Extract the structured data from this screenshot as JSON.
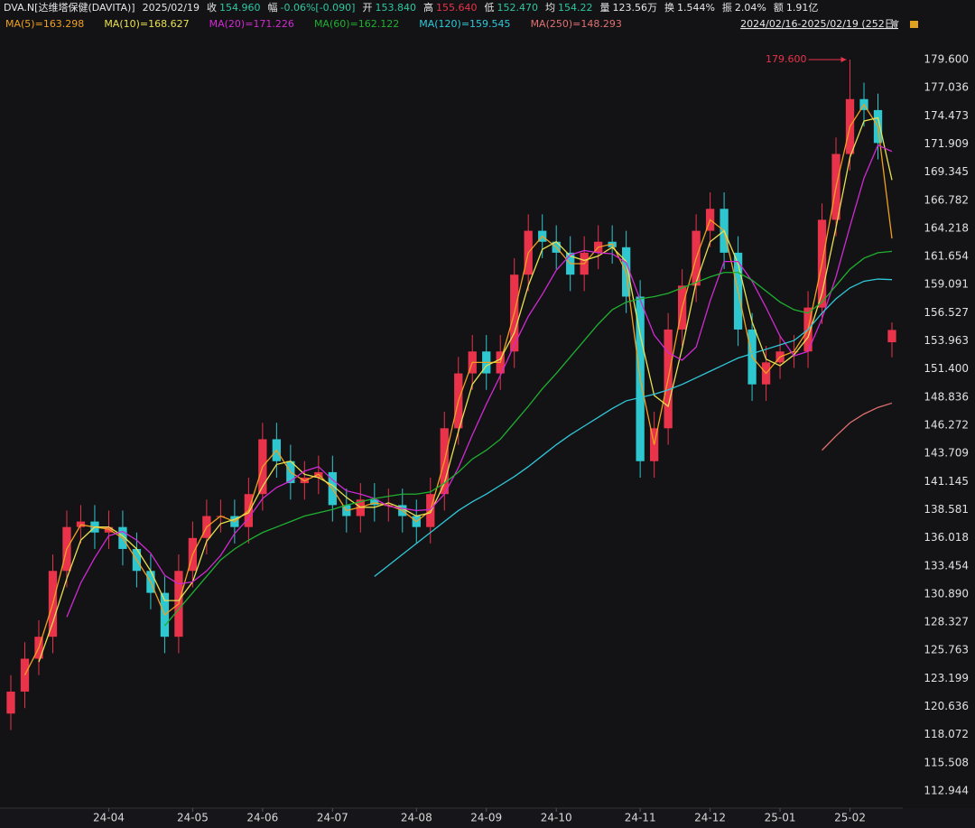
{
  "header": [
    {
      "label": "DVA.N[达维塔保健(DAVITA)]",
      "color": "#e6e6e6"
    },
    {
      "label": "2025/02/19",
      "color": "#e6e6e6"
    },
    {
      "label": "收",
      "color": "#e6e6e6"
    },
    {
      "label": "154.960",
      "color": "#2ec6a0"
    },
    {
      "label": "幅",
      "color": "#e6e6e6"
    },
    {
      "label": "-0.06%[-0.090]",
      "color": "#2ec6a0"
    },
    {
      "label": "开",
      "color": "#e6e6e6"
    },
    {
      "label": "153.840",
      "color": "#2ec6a0"
    },
    {
      "label": "高",
      "color": "#e6e6e6"
    },
    {
      "label": "155.640",
      "color": "#e8334a"
    },
    {
      "label": "低",
      "color": "#e6e6e6"
    },
    {
      "label": "152.470",
      "color": "#2ec6a0"
    },
    {
      "label": "均",
      "color": "#e6e6e6"
    },
    {
      "label": "154.22",
      "color": "#2ec6a0"
    },
    {
      "label": "量",
      "color": "#e6e6e6"
    },
    {
      "label": "123.56万",
      "color": "#e6e6e6"
    },
    {
      "label": "换",
      "color": "#e6e6e6"
    },
    {
      "label": "1.544%",
      "color": "#e6e6e6"
    },
    {
      "label": "振",
      "color": "#e6e6e6"
    },
    {
      "label": "2.04%",
      "color": "#e6e6e6"
    },
    {
      "label": "额",
      "color": "#e6e6e6"
    },
    {
      "label": "1.91亿",
      "color": "#e6e6e6"
    }
  ],
  "chart_data": {
    "type": "candlestick",
    "range_label": "2024/02/16-2025/02/19 (252日)",
    "annotation": {
      "text": "179.600",
      "index": 60,
      "value": 179.6
    },
    "up_color": "#e8334a",
    "down_color": "#2ec6cf",
    "categories": [
      null,
      null,
      null,
      null,
      null,
      null,
      null,
      "24-04",
      null,
      null,
      null,
      null,
      null,
      "24-05",
      null,
      null,
      null,
      null,
      "24-06",
      null,
      null,
      null,
      null,
      "24-07",
      null,
      null,
      null,
      null,
      null,
      "24-08",
      null,
      null,
      null,
      null,
      "24-09",
      null,
      null,
      null,
      null,
      "24-10",
      null,
      null,
      null,
      null,
      null,
      "24-11",
      null,
      null,
      null,
      null,
      "24-12",
      null,
      null,
      null,
      null,
      "25-01",
      null,
      null,
      null,
      null,
      "25-02",
      null,
      null,
      null
    ],
    "open": [
      120,
      122,
      125,
      127,
      133,
      137,
      137.5,
      136.5,
      137,
      135,
      133,
      131,
      127,
      133,
      136,
      138,
      138,
      137,
      140,
      145,
      143,
      141,
      141.5,
      142,
      139,
      138,
      139.5,
      139,
      139,
      138,
      137,
      140,
      146,
      151,
      153,
      151,
      153,
      160,
      164,
      163,
      162,
      160,
      162,
      163,
      162.5,
      158,
      143,
      146,
      155,
      159,
      164,
      166,
      162,
      155,
      150,
      152,
      153,
      153,
      157,
      165,
      171,
      176,
      175,
      153.84
    ],
    "high": [
      123.5,
      126.5,
      128.5,
      134.5,
      138.5,
      139,
      139,
      138.5,
      138.5,
      136.5,
      134.5,
      132.5,
      134.5,
      137.5,
      139.5,
      139.5,
      139.5,
      141.5,
      146.5,
      146.5,
      144.5,
      143,
      143.5,
      143.5,
      140.5,
      141,
      141,
      140.5,
      140.5,
      139.5,
      141.5,
      147.5,
      152.5,
      154.5,
      154.5,
      154.5,
      161.5,
      165.5,
      165.5,
      164.5,
      163.5,
      163.5,
      164.5,
      164.5,
      164,
      159.5,
      147.5,
      156.5,
      160.5,
      165.5,
      167.5,
      167.5,
      163.5,
      156.5,
      153.5,
      154.5,
      154.5,
      158.5,
      166.5,
      172.5,
      179.6,
      177.5,
      176.5,
      155.64
    ],
    "low": [
      118.5,
      120.5,
      123.5,
      125.5,
      131.5,
      135.5,
      135,
      135,
      133.5,
      131.5,
      129.5,
      125.5,
      125.5,
      131.5,
      134.5,
      136.5,
      135.5,
      135.5,
      138.5,
      141.5,
      139.5,
      139.5,
      140,
      137.5,
      136.5,
      136.5,
      137.5,
      137.5,
      136.5,
      135.5,
      135.5,
      138.5,
      144.5,
      149.5,
      149.5,
      149.5,
      151.5,
      158.5,
      161.5,
      160.5,
      158.5,
      158.5,
      160.5,
      161,
      156.5,
      141.5,
      141.5,
      144.5,
      153.5,
      157.5,
      162.5,
      160.5,
      153.5,
      148.5,
      148.5,
      150.5,
      151.5,
      151.5,
      155.5,
      163.5,
      169.5,
      173.5,
      170.5,
      152.47
    ],
    "close": [
      122,
      125,
      127,
      133,
      137,
      137.5,
      136.5,
      137,
      135,
      133,
      131,
      127,
      133,
      136,
      138,
      138,
      137,
      140,
      145,
      143,
      141,
      141.5,
      142,
      139,
      138,
      139.5,
      139,
      139,
      138,
      137,
      140,
      146,
      151,
      153,
      151,
      153,
      160,
      164,
      163,
      162,
      160,
      162,
      163,
      162.5,
      158,
      143,
      146,
      155,
      159,
      164,
      166,
      162,
      155,
      150,
      152,
      153,
      153,
      157,
      165,
      171,
      176,
      175,
      172,
      154.96
    ],
    "series": [
      {
        "name": "MA(5)=163.298",
        "color": "#f0a020",
        "values": [
          null,
          123.5,
          126,
          130,
          135,
          137.2,
          137,
          136.8,
          136,
          134,
          132,
          129,
          130,
          134.5,
          137,
          138,
          137.5,
          138.5,
          142.5,
          144,
          142,
          141.2,
          141.8,
          140.5,
          138.5,
          138.8,
          139.2,
          139,
          138.5,
          137.5,
          138.5,
          143,
          148.5,
          152,
          152,
          152,
          156.5,
          162,
          163.5,
          162.5,
          161,
          161,
          162.5,
          162.8,
          160.2,
          150.5,
          144.5,
          150.5,
          157,
          161.5,
          165,
          164,
          158.5,
          152.5,
          151,
          152.5,
          153,
          155,
          161,
          168,
          173.5,
          175.5,
          173.5,
          163.298
        ]
      },
      {
        "name": "MA(10)=168.627",
        "color": "#e8e050",
        "values": [
          null,
          null,
          124.7,
          128.3,
          132.3,
          135.8,
          137,
          137,
          136.2,
          135,
          133,
          130.3,
          130.3,
          132,
          135.7,
          137.3,
          137.7,
          138.3,
          140.7,
          142.7,
          143,
          141.8,
          141.5,
          140.8,
          139.7,
          138.8,
          138.8,
          139.2,
          138.7,
          138,
          138.3,
          141,
          145.7,
          150,
          151.7,
          152.3,
          154.7,
          159,
          162.3,
          163,
          161.7,
          161.3,
          161.7,
          162.5,
          161.2,
          154.5,
          149,
          148,
          153.3,
          159.3,
          163,
          164,
          161,
          155.7,
          152.3,
          151.7,
          152.7,
          154.3,
          158.3,
          164.3,
          170.7,
          174,
          174.3,
          168.627
        ]
      },
      {
        "name": "MA(20)=171.226",
        "color": "#d02ad0",
        "values": [
          null,
          null,
          null,
          null,
          128.8,
          131.9,
          134.2,
          136.2,
          136.6,
          135.8,
          134.6,
          132.6,
          131.8,
          132,
          133,
          134.4,
          136.4,
          137.8,
          139.6,
          140.6,
          141.2,
          142.1,
          142.5,
          141.3,
          140.3,
          140,
          139.6,
          138.9,
          138.7,
          138.5,
          138.6,
          140,
          142.4,
          145.4,
          148.2,
          150.8,
          153.6,
          156.2,
          158.2,
          160.4,
          161.8,
          162.2,
          162,
          161.9,
          161.1,
          157.7,
          154.5,
          152.9,
          152.2,
          153.4,
          157.6,
          161.2,
          161.2,
          159.4,
          157,
          154.4,
          152.6,
          153,
          156,
          159.8,
          164.4,
          168.8,
          171.8,
          171.226
        ]
      },
      {
        "name": "MA(60)=162.122",
        "color": "#20b030",
        "values": [
          null,
          null,
          null,
          null,
          null,
          null,
          null,
          null,
          null,
          null,
          null,
          128,
          129.5,
          131,
          132.5,
          134,
          135,
          135.8,
          136.5,
          137,
          137.5,
          138,
          138.3,
          138.6,
          139,
          139.3,
          139.6,
          139.8,
          140,
          140,
          140.2,
          141,
          142,
          143.2,
          144,
          145,
          146.5,
          148,
          149.6,
          151,
          152.5,
          154,
          155.5,
          156.8,
          157.5,
          157.8,
          158,
          158.3,
          158.8,
          159.3,
          159.8,
          160.2,
          160.2,
          159.5,
          158.5,
          157.5,
          156.8,
          156.5,
          157.5,
          159,
          160.5,
          161.5,
          162,
          162.122
        ]
      },
      {
        "name": "MA(120)=159.545",
        "color": "#30c8d8",
        "values": [
          null,
          null,
          null,
          null,
          null,
          null,
          null,
          null,
          null,
          null,
          null,
          null,
          null,
          null,
          null,
          null,
          null,
          null,
          null,
          null,
          null,
          null,
          null,
          null,
          null,
          null,
          132.5,
          133.5,
          134.5,
          135.5,
          136.5,
          137.5,
          138.5,
          139.3,
          140,
          140.8,
          141.6,
          142.5,
          143.5,
          144.5,
          145.4,
          146.2,
          147,
          147.8,
          148.5,
          148.8,
          149.1,
          149.5,
          150,
          150.6,
          151.2,
          151.8,
          152.4,
          152.8,
          153.2,
          153.6,
          154,
          155,
          156.5,
          157.8,
          158.8,
          159.4,
          159.6,
          159.545
        ]
      },
      {
        "name": "MA(250)=148.293",
        "color": "#e07070",
        "values": [
          null,
          null,
          null,
          null,
          null,
          null,
          null,
          null,
          null,
          null,
          null,
          null,
          null,
          null,
          null,
          null,
          null,
          null,
          null,
          null,
          null,
          null,
          null,
          null,
          null,
          null,
          null,
          null,
          null,
          null,
          null,
          null,
          null,
          null,
          null,
          null,
          null,
          null,
          null,
          null,
          null,
          null,
          null,
          null,
          null,
          null,
          null,
          null,
          null,
          null,
          null,
          null,
          null,
          null,
          null,
          null,
          null,
          null,
          144,
          145.3,
          146.5,
          147.3,
          147.9,
          148.293
        ]
      }
    ],
    "ylim": [
      111.38,
      181.74
    ],
    "yticks": [
      {
        "value": 179.6,
        "label": "179.600"
      },
      177.036,
      174.473,
      171.909,
      169.345,
      166.782,
      164.218,
      161.654,
      159.091,
      156.527,
      153.963,
      {
        "value": 151.4,
        "label": "151.400"
      },
      148.836,
      146.272,
      143.709,
      141.145,
      138.581,
      136.018,
      133.454,
      {
        "value": 130.89,
        "label": "130.890"
      },
      128.327,
      125.763,
      123.199,
      120.636,
      118.072,
      115.508,
      112.944
    ]
  }
}
